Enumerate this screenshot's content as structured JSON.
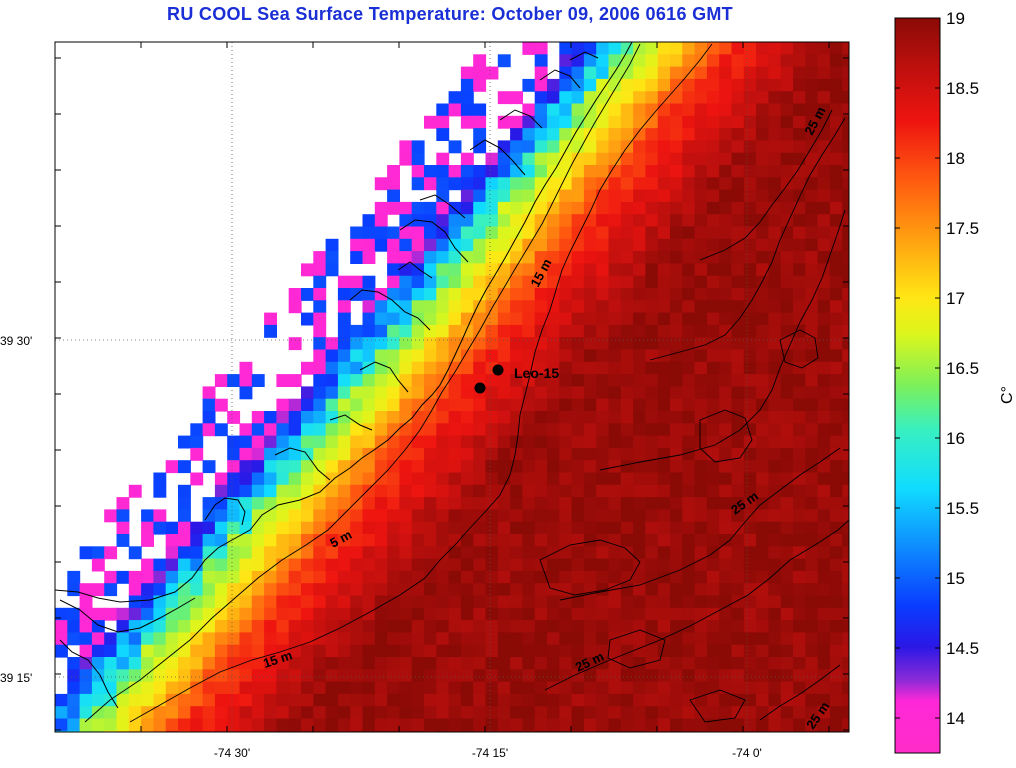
{
  "title": "RU COOL  Sea Surface Temperature:  October 09, 2006 0616 GMT",
  "map": {
    "latitude_labels": [
      "39 30'",
      "39 15'"
    ],
    "longitude_labels": [
      "-74 30'",
      "-74 15'",
      "-74 0'"
    ],
    "depth_contour_labels": [
      "5 m",
      "15 m",
      "15 m",
      "25 m",
      "25 m",
      "25 m",
      "25 m"
    ],
    "station": {
      "name": "Leo-15"
    }
  },
  "colorbar": {
    "unit_label": "C°",
    "range": [
      13.75,
      19.0
    ],
    "ticks": [
      "19",
      "18.5",
      "18",
      "17.5",
      "17",
      "16.5",
      "16",
      "15.5",
      "15",
      "14.5",
      "14"
    ],
    "colormap": "magenta-purple-blue-cyan-green-yellow-orange-red-darkred"
  },
  "colors": {
    "title": "#1a2fd6",
    "land": "#ffffff",
    "contour": "#000000"
  }
}
